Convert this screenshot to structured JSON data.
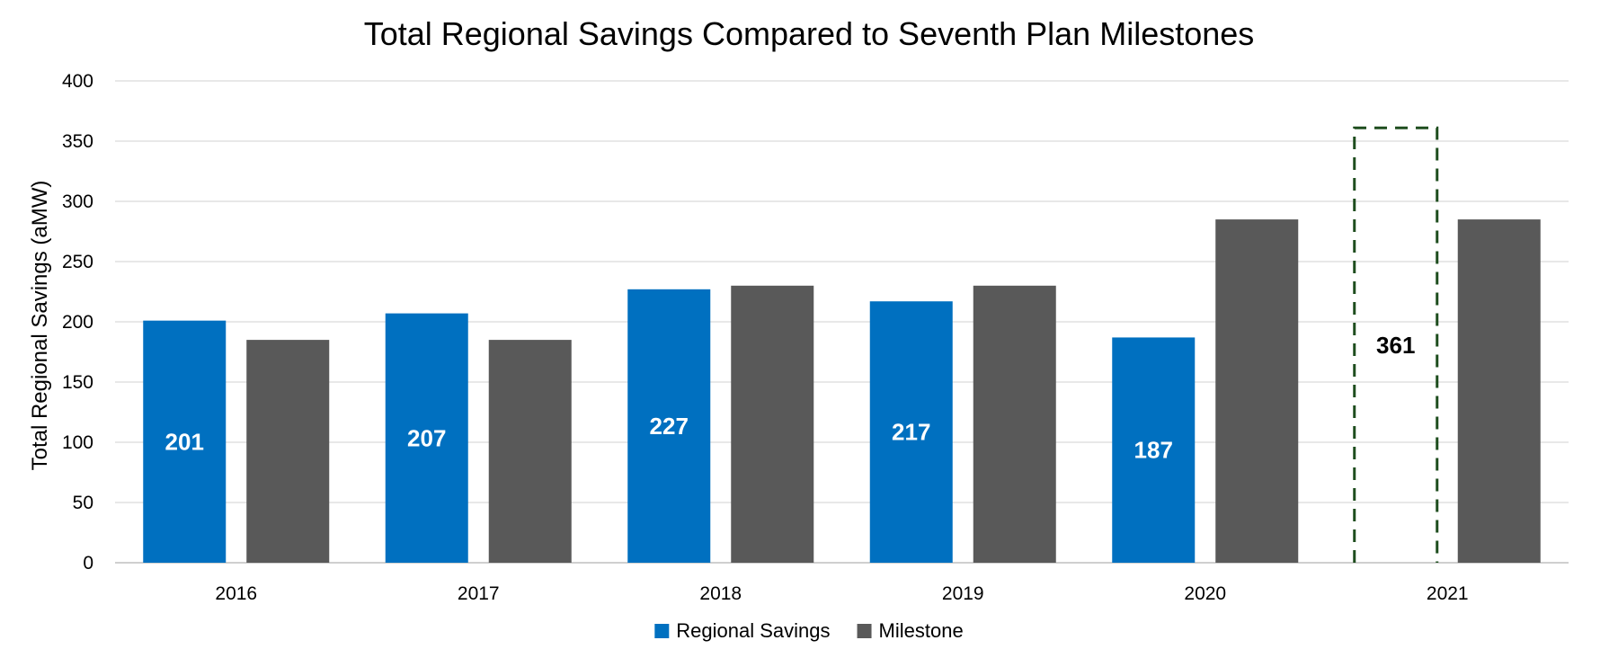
{
  "chart_data": {
    "type": "bar",
    "title": "Total Regional Savings Compared to Seventh Plan Milestones",
    "ylabel": "Total Regional Savings (aMW)",
    "xlabel": "",
    "categories": [
      "2016",
      "2017",
      "2018",
      "2019",
      "2020",
      "2021"
    ],
    "yticks": [
      "0",
      "50",
      "100",
      "150",
      "200",
      "250",
      "300",
      "350",
      "400"
    ],
    "ylim": [
      0,
      400
    ],
    "grid": true,
    "legend_position": "bottom-center",
    "series": [
      {
        "name": "Regional Savings",
        "color": "#0070C0",
        "values": [
          201,
          207,
          227,
          217,
          187,
          null
        ],
        "labels": [
          "201",
          "207",
          "227",
          "217",
          "187",
          ""
        ]
      },
      {
        "name": "Milestone",
        "color": "#595959",
        "values": [
          185,
          185,
          230,
          230,
          285,
          285
        ]
      }
    ],
    "annotations": [
      {
        "category": "2021",
        "series": "Regional Savings",
        "value": 361,
        "label": "361",
        "style": "dashed-outline",
        "color": "#1E4D1E"
      }
    ]
  }
}
